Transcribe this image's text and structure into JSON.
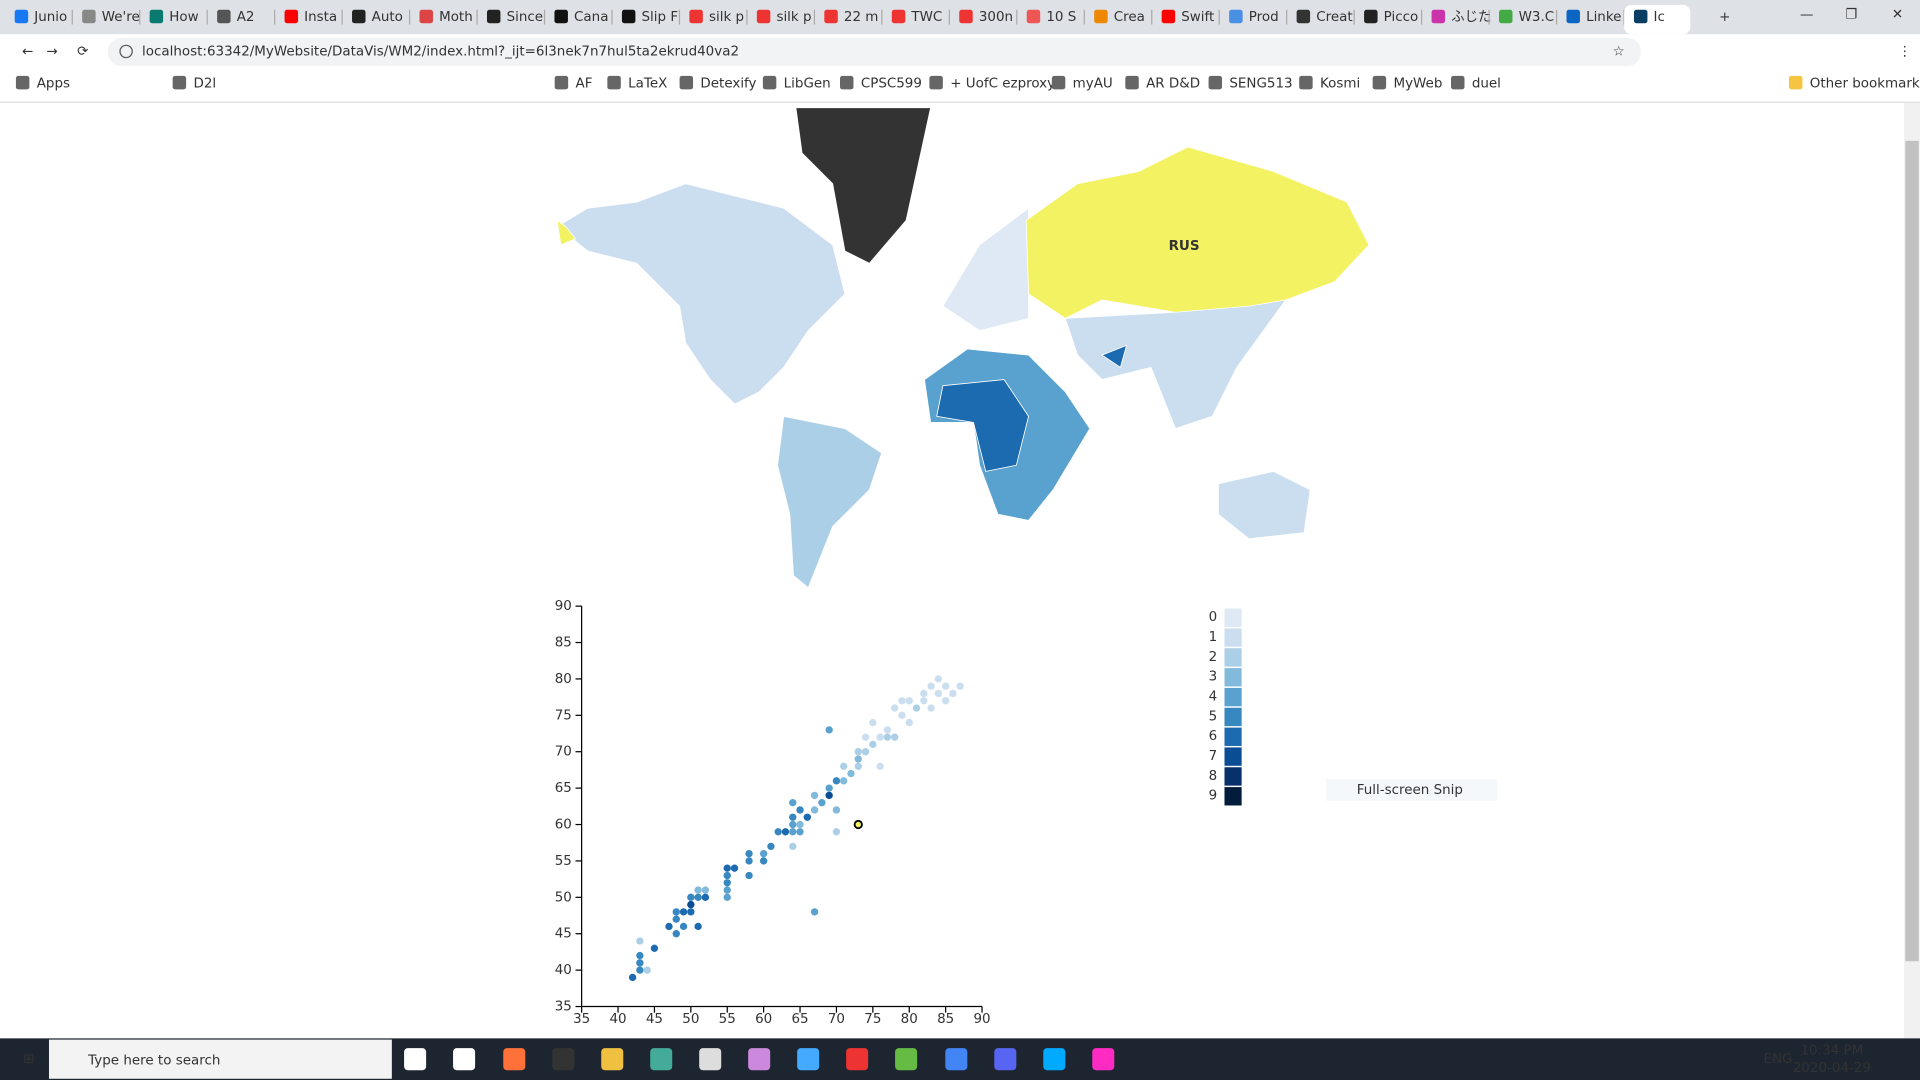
{
  "browser": {
    "tabs": [
      "Junio",
      "We're",
      "How",
      "A2",
      "Insta",
      "Auto",
      "Moth",
      "Since",
      "Cana",
      "Slip F",
      "silk p",
      "silk p",
      "22 m",
      "TWC",
      "300n",
      "10 S",
      "Crea",
      "Swift",
      "Prod",
      "Creat",
      "Picco",
      "ふじた",
      "W3.C",
      "Linke",
      "Ic"
    ],
    "url": "localhost:63342/MyWebsite/DataVis/WM2/index.html?_ijt=6l3nek7n7hul5ta2ekrud40va2",
    "bookmarks": [
      "Apps",
      "D2l",
      "AF",
      "LaTeX",
      "Detexify",
      "LibGen",
      "CPSC599",
      "+ UofC ezproxy",
      "myAU",
      "AR D&D",
      "SENG513",
      "Kosmi",
      "MyWeb",
      "duel",
      "Other bookmarks"
    ]
  },
  "map": {
    "label": "RUS"
  },
  "chart_data": {
    "type": "scatter",
    "x": [
      42,
      43,
      43,
      43,
      43,
      44,
      45,
      47,
      48,
      48,
      48,
      49,
      50,
      50,
      50,
      51,
      51,
      52,
      52,
      51,
      49,
      55,
      55,
      55,
      55,
      55,
      56,
      58,
      58,
      58,
      60,
      60,
      61,
      62,
      63,
      64,
      64,
      64,
      64,
      65,
      65,
      65,
      66,
      64,
      67,
      67,
      68,
      69,
      69,
      70,
      70,
      70,
      69,
      71,
      71,
      72,
      73,
      73,
      73,
      74,
      74,
      75,
      75,
      76,
      76,
      77,
      77,
      78,
      78,
      79,
      79,
      80,
      80,
      81,
      82,
      82,
      83,
      83,
      84,
      84,
      85,
      85,
      86,
      87,
      67,
      73
    ],
    "y": [
      39,
      40,
      41,
      42,
      44,
      40,
      43,
      46,
      45,
      47,
      48,
      48,
      48,
      49,
      50,
      50,
      51,
      51,
      50,
      46,
      46,
      50,
      51,
      52,
      53,
      54,
      54,
      53,
      55,
      56,
      55,
      56,
      57,
      59,
      59,
      57,
      59,
      60,
      61,
      59,
      60,
      62,
      61,
      63,
      62,
      64,
      63,
      64,
      65,
      66,
      62,
      59,
      73,
      66,
      68,
      67,
      68,
      69,
      70,
      70,
      72,
      71,
      74,
      72,
      68,
      73,
      72,
      72,
      76,
      75,
      77,
      74,
      77,
      76,
      77,
      78,
      79,
      76,
      78,
      80,
      77,
      79,
      78,
      79,
      48,
      60
    ],
    "levels": [
      6,
      5,
      5,
      5,
      2,
      2,
      6,
      6,
      5,
      5,
      5,
      6,
      6,
      7,
      5,
      5,
      3,
      3,
      6,
      6,
      5,
      4,
      4,
      5,
      5,
      6,
      6,
      5,
      5,
      5,
      5,
      4,
      5,
      5,
      6,
      2,
      4,
      4,
      5,
      4,
      3,
      5,
      6,
      4,
      3,
      3,
      4,
      7,
      4,
      5,
      3,
      2,
      4,
      3,
      2,
      3,
      2,
      3,
      2,
      2,
      1,
      2,
      1,
      1,
      1,
      1,
      2,
      2,
      1,
      1,
      1,
      1,
      1,
      2,
      1,
      1,
      1,
      1,
      1,
      1,
      1,
      1,
      1,
      1,
      4,
      0
    ],
    "highlight_index": 85,
    "xlim": [
      35,
      90
    ],
    "ylim": [
      35,
      90
    ],
    "xticks": [
      35,
      40,
      45,
      50,
      55,
      60,
      65,
      70,
      75,
      80,
      85,
      90
    ],
    "yticks": [
      35,
      40,
      45,
      50,
      55,
      60,
      65,
      70,
      75,
      80,
      85,
      90
    ],
    "legend": {
      "labels": [
        "0",
        "1",
        "2",
        "3",
        "4",
        "5",
        "6",
        "7",
        "8",
        "9"
      ],
      "colors": [
        "#dfe9f5",
        "#cadef0",
        "#abcfe6",
        "#82badb",
        "#59a1cf",
        "#3787c0",
        "#1c6aaf",
        "#0b4d94",
        "#08306b",
        "#041c3c"
      ]
    }
  },
  "snip": "Full-screen Snip",
  "taskbar": {
    "search": "Type here to search",
    "lang": "ENG",
    "time": "10:34 PM",
    "date": "2020-04-29"
  }
}
